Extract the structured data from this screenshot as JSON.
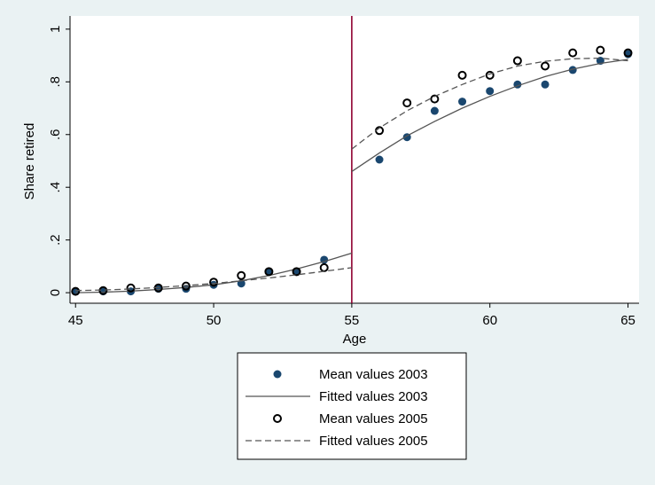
{
  "chart_data": {
    "type": "scatter-line",
    "x_label": "Age",
    "y_label": "Share retired",
    "xlim": [
      44.8,
      65.4
    ],
    "ylim": [
      -0.04,
      1.05
    ],
    "xticks": [
      45,
      50,
      55,
      60,
      65
    ],
    "yticks": [
      0,
      {
        "value": 0.2,
        "label": ".2"
      },
      {
        "value": 0.4,
        "label": ".4"
      },
      {
        "value": 0.6,
        "label": ".6"
      },
      {
        "value": 0.8,
        "label": ".8"
      },
      1
    ],
    "xline": 55,
    "xline_color": "#900030",
    "series": [
      {
        "name": "Mean values 2003",
        "kind": "filled-marker",
        "color": "#1a476f",
        "x": [
          45,
          46,
          47,
          48,
          49,
          50,
          51,
          52,
          53,
          54,
          56,
          57,
          58,
          59,
          60,
          61,
          62,
          63,
          64,
          65
        ],
        "values": [
          0.005,
          0.005,
          0.005,
          0.015,
          0.015,
          0.03,
          0.035,
          0.08,
          0.08,
          0.125,
          0.505,
          0.59,
          0.69,
          0.725,
          0.765,
          0.79,
          0.79,
          0.845,
          0.88,
          0.905
        ]
      },
      {
        "name": "Fitted values 2003",
        "kind": "solid-line",
        "color": "#555555",
        "x": [
          45,
          46,
          47,
          48,
          49,
          50,
          51,
          52,
          53,
          54,
          55,
          55,
          55,
          56,
          57,
          58,
          59,
          60,
          61,
          62,
          63,
          64,
          65
        ],
        "values": [
          0,
          0.002,
          0.006,
          0.012,
          0.02,
          0.03,
          0.045,
          0.065,
          0.09,
          0.118,
          0.15,
          null,
          0.46,
          0.53,
          0.595,
          0.65,
          0.7,
          0.745,
          0.785,
          0.82,
          0.848,
          0.87,
          0.885
        ]
      },
      {
        "name": "Mean values 2005",
        "kind": "hollow-marker",
        "color": "#000000",
        "x": [
          45,
          46,
          47,
          48,
          49,
          50,
          51,
          52,
          53,
          54,
          56,
          57,
          58,
          59,
          60,
          61,
          62,
          63,
          64,
          65
        ],
        "values": [
          0.005,
          0.008,
          0.018,
          0.018,
          0.025,
          0.04,
          0.065,
          0.08,
          0.08,
          0.095,
          0.615,
          0.72,
          0.735,
          0.825,
          0.825,
          0.88,
          0.86,
          0.91,
          0.92,
          0.91
        ]
      },
      {
        "name": "Fitted values 2005",
        "kind": "dashed-line",
        "color": "#555555",
        "x": [
          45,
          46,
          47,
          48,
          49,
          50,
          51,
          52,
          53,
          54,
          55,
          55,
          55,
          56,
          57,
          58,
          59,
          60,
          61,
          62,
          63,
          64,
          65
        ],
        "values": [
          0.008,
          0.01,
          0.014,
          0.02,
          0.027,
          0.035,
          0.045,
          0.056,
          0.068,
          0.081,
          0.095,
          null,
          0.545,
          0.625,
          0.69,
          0.745,
          0.79,
          0.83,
          0.86,
          0.878,
          0.888,
          0.89,
          0.88
        ]
      }
    ]
  }
}
